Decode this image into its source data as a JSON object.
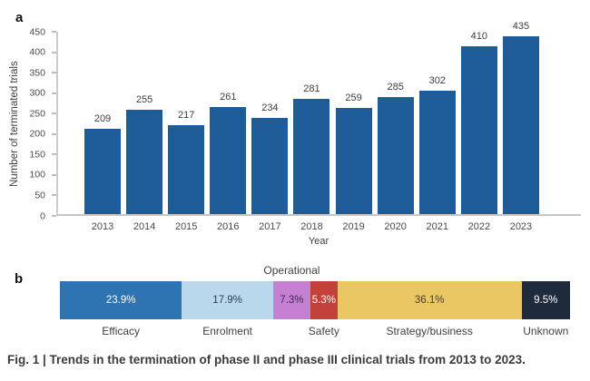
{
  "panels": {
    "a": {
      "label": "a"
    },
    "b": {
      "label": "b"
    }
  },
  "caption": "Fig. 1 | Trends in the termination of phase II and phase III clinical trials from 2013 to 2023.",
  "chart_data": [
    {
      "type": "bar",
      "panel": "a",
      "title": "",
      "xlabel": "Year",
      "ylabel": "Number of terminated trials",
      "categories": [
        "2013",
        "2014",
        "2015",
        "2016",
        "2017",
        "2018",
        "2019",
        "2020",
        "2021",
        "2022",
        "2023"
      ],
      "values": [
        209,
        255,
        217,
        261,
        234,
        281,
        259,
        285,
        302,
        410,
        435
      ],
      "ylim": [
        0,
        450
      ],
      "ytick_step": 50,
      "bar_color": "#1e5c99",
      "grid": false,
      "value_labels": true
    },
    {
      "type": "stacked-bar",
      "panel": "b",
      "orientation": "horizontal",
      "segments": [
        {
          "label": "Efficacy",
          "pct": 23.9,
          "pct_label": "23.9%",
          "color": "#2e74b2",
          "text_color": "#ffffff",
          "category_label_position": "below"
        },
        {
          "label": "Enrolment",
          "pct": 17.9,
          "pct_label": "17.9%",
          "color": "#b9d8ec",
          "text_color": "#2f3e50",
          "category_label_position": "below"
        },
        {
          "label": "Operational",
          "pct": 7.3,
          "pct_label": "7.3%",
          "color": "#c67fd2",
          "text_color": "#3a2e52",
          "category_label_position": "above"
        },
        {
          "label": "Safety",
          "pct": 5.3,
          "pct_label": "5.3%",
          "color": "#c2423b",
          "text_color": "#ffffff",
          "category_label_position": "below"
        },
        {
          "label": "Strategy/business",
          "pct": 36.1,
          "pct_label": "36.1%",
          "color": "#eac763",
          "text_color": "#4a4130",
          "category_label_position": "below"
        },
        {
          "label": "Unknown",
          "pct": 9.5,
          "pct_label": "9.5%",
          "color": "#1e2b3d",
          "text_color": "#ffffff",
          "category_label_position": "below"
        }
      ]
    }
  ]
}
